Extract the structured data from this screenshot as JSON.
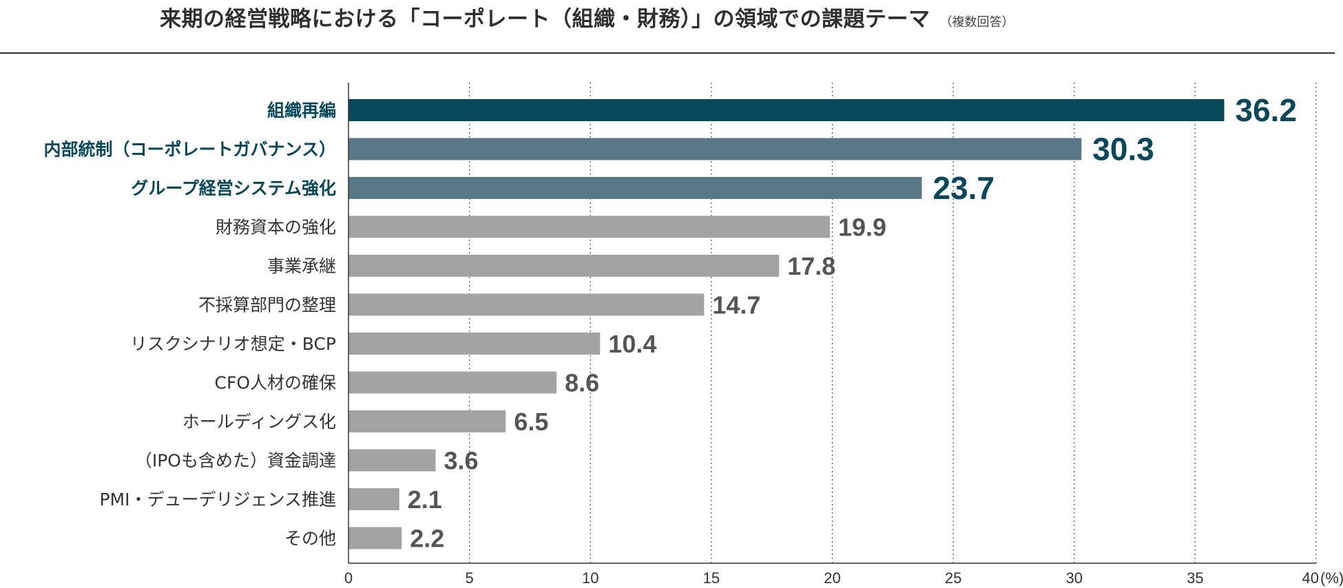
{
  "chart_data": {
    "type": "bar",
    "orientation": "horizontal",
    "title": "来期の経営戦略における「コーポレート（組織・財務）」の領域での課題テーマ",
    "subtitle": "（複数回答）",
    "unit": "(%)",
    "xlim": [
      0,
      40
    ],
    "xticks": [
      0,
      5,
      10,
      15,
      20,
      25,
      30,
      35,
      40
    ],
    "grid": "vertical dotted",
    "categories": [
      "組織再編",
      "内部統制（コーポレートガバナンス）",
      "グループ経営システム強化",
      "財務資本の強化",
      "事業承継",
      "不採算部門の整理",
      "リスクシナリオ想定・BCP",
      "CFO人材の確保",
      "ホールディングス化",
      "（IPOも含めた）資金調達",
      "PMI・デューデリジェンス推進",
      "その他"
    ],
    "values": [
      36.2,
      30.3,
      23.7,
      19.9,
      17.8,
      14.7,
      10.4,
      8.6,
      6.5,
      3.6,
      2.1,
      2.2
    ],
    "value_labels": [
      "36.2",
      "30.3",
      "23.7",
      "19.9",
      "17.8",
      "14.7",
      "10.4",
      "8.6",
      "6.5",
      "3.6",
      "2.1",
      "2.2"
    ],
    "highlight_count": 3
  },
  "colors": {
    "top": "#05495a",
    "highlight": "#587887",
    "normal": "#a3a3a3",
    "highlight_text": "#05495a",
    "normal_text": "#333333",
    "normal_value_text": "#555555",
    "axis": "#333333",
    "grid": "#555555"
  }
}
